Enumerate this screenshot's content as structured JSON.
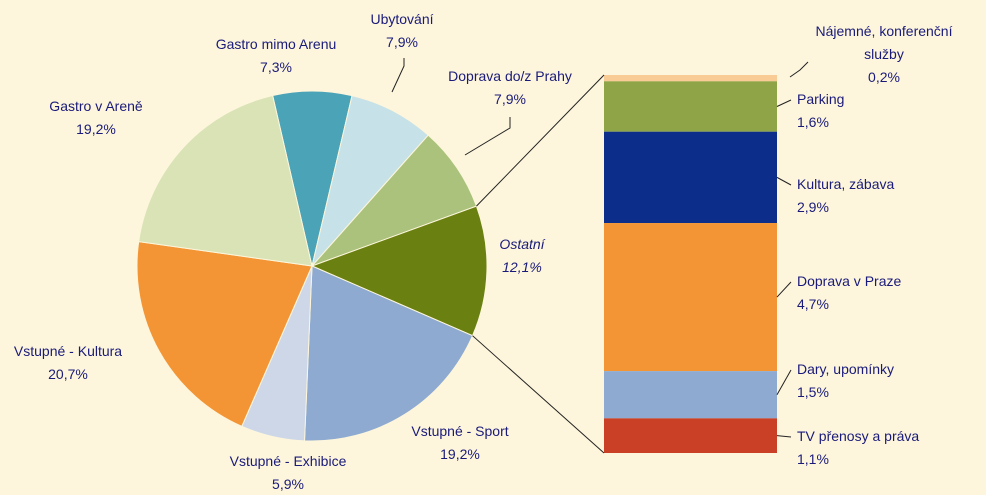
{
  "chart_data": [
    {
      "type": "pie",
      "categories": [
        "Gastro mimo Arenu",
        "Ubytování",
        "Doprava do/z Prahy",
        "Ostatní",
        "Vstupné - Sport",
        "Vstupné - Exhibice",
        "Vstupné - Kultura",
        "Gastro v Areně"
      ],
      "values": [
        7.3,
        7.9,
        7.9,
        12.1,
        19.2,
        5.9,
        20.7,
        19.2
      ],
      "value_labels": [
        "7,3%",
        "7,9%",
        "7,9%",
        "12,1%",
        "19,2%",
        "5,9%",
        "20,7%",
        "19,2%"
      ],
      "colors": [
        "#4ba3b8",
        "#c6e1e7",
        "#aac27b",
        "#6a8011",
        "#8eaad1",
        "#cdd7e7",
        "#f39535",
        "#d9e3b6"
      ]
    },
    {
      "type": "stacked_bar",
      "categories": [
        "Nájemné, konferenční služby",
        "Parking",
        "Kultura, zábava",
        "Doprava v Praze",
        "Dary, upomínky",
        "TV přenosy a práva"
      ],
      "values": [
        0.2,
        1.6,
        2.9,
        4.7,
        1.5,
        1.1
      ],
      "value_labels": [
        "0,2%",
        "1,6%",
        "2,9%",
        "4,7%",
        "1,5%",
        "1,1%"
      ],
      "colors": [
        "#f9cc95",
        "#8fa446",
        "#0d2d8a",
        "#f39535",
        "#8eaad1",
        "#c94027"
      ]
    }
  ]
}
